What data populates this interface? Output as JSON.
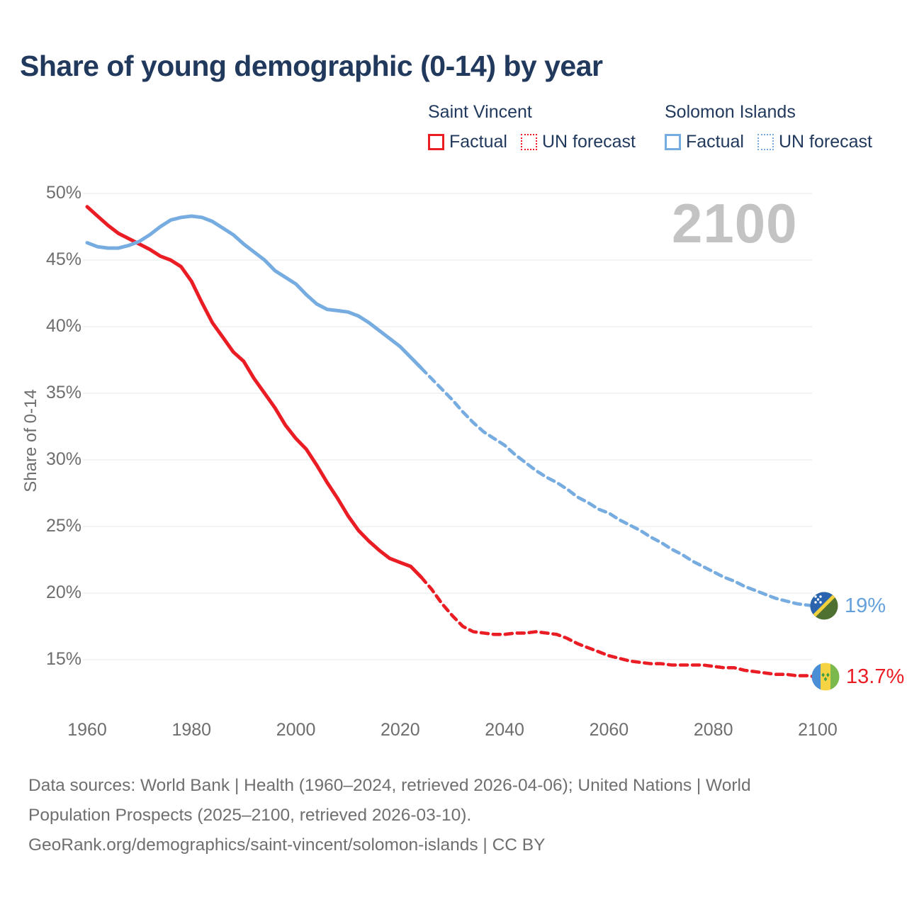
{
  "title": "Share of young demographic (0-14) by year",
  "watermark": "2100",
  "legend": {
    "groups": [
      {
        "name": "Saint Vincent",
        "color": "#ea1c24",
        "items": [
          {
            "label": "Factual",
            "style": "solid"
          },
          {
            "label": "UN forecast",
            "style": "dotted"
          }
        ]
      },
      {
        "name": "Solomon Islands",
        "color": "#76ace0",
        "items": [
          {
            "label": "Factual",
            "style": "solid"
          },
          {
            "label": "UN forecast",
            "style": "dotted"
          }
        ]
      }
    ]
  },
  "y_axis": {
    "label": "Share of 0-14"
  },
  "footer": {
    "lines": [
      "Data sources: World Bank | Health (1960–2024, retrieved 2026-04-06); United Nations | World",
      "Population Prospects (2025–2100, retrieved 2026-03-10).",
      "GeoRank.org/demographics/saint-vincent/solomon-islands | CC BY"
    ]
  },
  "chart_data": {
    "type": "line",
    "title": "Share of young demographic (0-14) by year",
    "xlabel": "",
    "ylabel": "Share of 0-14",
    "x_ticks": [
      1960,
      1980,
      2000,
      2020,
      2040,
      2060,
      2080,
      2100
    ],
    "y_ticks": [
      50,
      45,
      40,
      35,
      30,
      25,
      20,
      15
    ],
    "y_tick_suffix": "%",
    "xlim": [
      1958,
      2113
    ],
    "ylim": [
      13,
      51.5
    ],
    "grid": "horizontal-only",
    "legend_position": "top-right",
    "forecast_split_year": 2024,
    "colors": {
      "saint_vincent": "#ea1c24",
      "solomon_islands": "#76ace0"
    },
    "series": [
      {
        "id": "saint-vincent-factual",
        "name": "Saint Vincent — Factual",
        "color": "#ea1c24",
        "dash": false,
        "points": [
          [
            1960,
            49.0
          ],
          [
            1962,
            48.3
          ],
          [
            1964,
            47.6
          ],
          [
            1966,
            47.0
          ],
          [
            1968,
            46.6
          ],
          [
            1970,
            46.2
          ],
          [
            1972,
            45.8
          ],
          [
            1974,
            45.3
          ],
          [
            1976,
            45.0
          ],
          [
            1978,
            44.5
          ],
          [
            1980,
            43.4
          ],
          [
            1982,
            41.8
          ],
          [
            1984,
            40.3
          ],
          [
            1986,
            39.2
          ],
          [
            1988,
            38.1
          ],
          [
            1990,
            37.4
          ],
          [
            1992,
            36.1
          ],
          [
            1994,
            35.0
          ],
          [
            1996,
            33.9
          ],
          [
            1998,
            32.6
          ],
          [
            2000,
            31.6
          ],
          [
            2002,
            30.8
          ],
          [
            2004,
            29.6
          ],
          [
            2006,
            28.3
          ],
          [
            2008,
            27.1
          ],
          [
            2010,
            25.8
          ],
          [
            2012,
            24.7
          ],
          [
            2014,
            23.9
          ],
          [
            2016,
            23.2
          ],
          [
            2018,
            22.6
          ],
          [
            2020,
            22.3
          ],
          [
            2022,
            22.0
          ],
          [
            2024,
            21.2
          ]
        ]
      },
      {
        "id": "saint-vincent-forecast",
        "name": "Saint Vincent — UN forecast",
        "color": "#ea1c24",
        "dash": true,
        "points": [
          [
            2024,
            21.2
          ],
          [
            2026,
            20.3
          ],
          [
            2028,
            19.2
          ],
          [
            2030,
            18.3
          ],
          [
            2032,
            17.5
          ],
          [
            2034,
            17.1
          ],
          [
            2036,
            17.0
          ],
          [
            2038,
            16.9
          ],
          [
            2040,
            16.9
          ],
          [
            2042,
            17.0
          ],
          [
            2044,
            17.0
          ],
          [
            2046,
            17.1
          ],
          [
            2048,
            17.0
          ],
          [
            2050,
            16.9
          ],
          [
            2052,
            16.6
          ],
          [
            2054,
            16.2
          ],
          [
            2056,
            15.9
          ],
          [
            2058,
            15.6
          ],
          [
            2060,
            15.3
          ],
          [
            2062,
            15.1
          ],
          [
            2064,
            14.9
          ],
          [
            2066,
            14.8
          ],
          [
            2068,
            14.7
          ],
          [
            2070,
            14.7
          ],
          [
            2072,
            14.6
          ],
          [
            2074,
            14.6
          ],
          [
            2076,
            14.6
          ],
          [
            2078,
            14.6
          ],
          [
            2080,
            14.5
          ],
          [
            2082,
            14.4
          ],
          [
            2084,
            14.4
          ],
          [
            2086,
            14.2
          ],
          [
            2088,
            14.1
          ],
          [
            2090,
            14.0
          ],
          [
            2092,
            13.9
          ],
          [
            2094,
            13.9
          ],
          [
            2096,
            13.8
          ],
          [
            2098,
            13.8
          ],
          [
            2100,
            13.7
          ]
        ]
      },
      {
        "id": "solomon-islands-factual",
        "name": "Solomon Islands — Factual",
        "color": "#76ace0",
        "dash": false,
        "points": [
          [
            1960,
            46.3
          ],
          [
            1962,
            46.0
          ],
          [
            1964,
            45.9
          ],
          [
            1966,
            45.9
          ],
          [
            1968,
            46.1
          ],
          [
            1970,
            46.4
          ],
          [
            1972,
            46.9
          ],
          [
            1974,
            47.5
          ],
          [
            1976,
            48.0
          ],
          [
            1978,
            48.2
          ],
          [
            1980,
            48.3
          ],
          [
            1982,
            48.2
          ],
          [
            1984,
            47.9
          ],
          [
            1986,
            47.4
          ],
          [
            1988,
            46.9
          ],
          [
            1990,
            46.2
          ],
          [
            1992,
            45.6
          ],
          [
            1994,
            45.0
          ],
          [
            1996,
            44.2
          ],
          [
            1998,
            43.7
          ],
          [
            2000,
            43.2
          ],
          [
            2002,
            42.4
          ],
          [
            2004,
            41.7
          ],
          [
            2006,
            41.3
          ],
          [
            2008,
            41.2
          ],
          [
            2010,
            41.1
          ],
          [
            2012,
            40.8
          ],
          [
            2014,
            40.3
          ],
          [
            2016,
            39.7
          ],
          [
            2018,
            39.1
          ],
          [
            2020,
            38.5
          ],
          [
            2022,
            37.7
          ],
          [
            2024,
            36.9
          ]
        ]
      },
      {
        "id": "solomon-islands-forecast",
        "name": "Solomon Islands — UN forecast",
        "color": "#76ace0",
        "dash": true,
        "points": [
          [
            2024,
            36.9
          ],
          [
            2026,
            36.1
          ],
          [
            2028,
            35.3
          ],
          [
            2030,
            34.5
          ],
          [
            2032,
            33.6
          ],
          [
            2034,
            32.8
          ],
          [
            2036,
            32.1
          ],
          [
            2038,
            31.6
          ],
          [
            2040,
            31.1
          ],
          [
            2042,
            30.4
          ],
          [
            2044,
            29.8
          ],
          [
            2046,
            29.2
          ],
          [
            2048,
            28.7
          ],
          [
            2050,
            28.3
          ],
          [
            2052,
            27.8
          ],
          [
            2054,
            27.2
          ],
          [
            2056,
            26.8
          ],
          [
            2058,
            26.3
          ],
          [
            2060,
            26.0
          ],
          [
            2062,
            25.5
          ],
          [
            2064,
            25.1
          ],
          [
            2066,
            24.7
          ],
          [
            2068,
            24.2
          ],
          [
            2070,
            23.8
          ],
          [
            2072,
            23.3
          ],
          [
            2074,
            22.9
          ],
          [
            2076,
            22.4
          ],
          [
            2078,
            22.0
          ],
          [
            2080,
            21.6
          ],
          [
            2082,
            21.2
          ],
          [
            2084,
            20.9
          ],
          [
            2086,
            20.5
          ],
          [
            2088,
            20.2
          ],
          [
            2090,
            19.9
          ],
          [
            2092,
            19.6
          ],
          [
            2094,
            19.4
          ],
          [
            2096,
            19.2
          ],
          [
            2098,
            19.1
          ],
          [
            2100,
            19.0
          ]
        ]
      }
    ],
    "end_labels": [
      {
        "country": "Solomon Islands",
        "text": "19%",
        "color": "#64a1dc"
      },
      {
        "country": "Saint Vincent",
        "text": "13.7%",
        "color": "#ea1c24"
      }
    ]
  }
}
